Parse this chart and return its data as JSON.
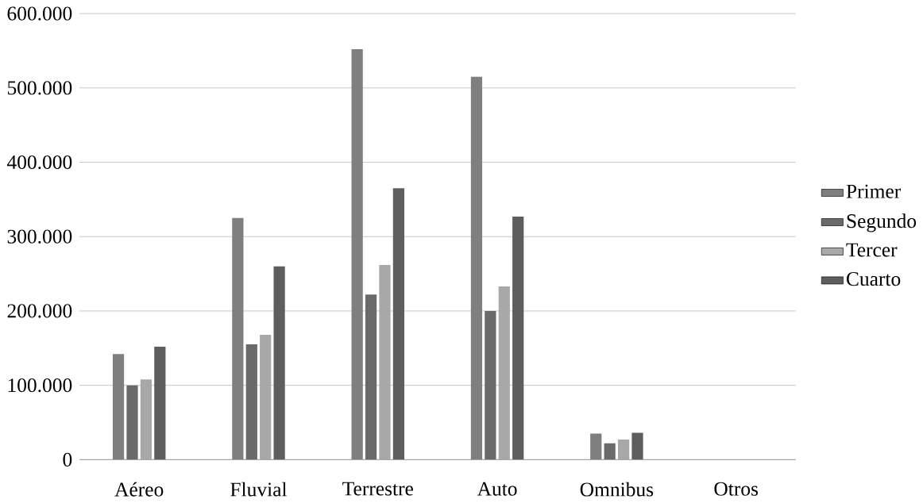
{
  "chart_data": {
    "type": "bar",
    "categories": [
      "Aéreo",
      "Fluvial",
      "Terrestre",
      "Auto",
      "Omnibus",
      "Otros"
    ],
    "series": [
      {
        "name": "Primer",
        "color": "#7f7f7f",
        "values": [
          142000,
          325000,
          552000,
          515000,
          35000,
          0
        ]
      },
      {
        "name": "Segundo",
        "color": "#6a6a6a",
        "values": [
          100000,
          155000,
          222000,
          200000,
          22000,
          0
        ]
      },
      {
        "name": "Tercer",
        "color": "#a8a8a8",
        "values": [
          108000,
          168000,
          262000,
          233000,
          27000,
          0
        ]
      },
      {
        "name": "Cuarto",
        "color": "#5e5e5e",
        "values": [
          152000,
          260000,
          365000,
          327000,
          36000,
          0
        ]
      }
    ],
    "ylim": [
      0,
      600000
    ],
    "yticks": [
      {
        "value": 0,
        "label": "0"
      },
      {
        "value": 100000,
        "label": "100.000"
      },
      {
        "value": 200000,
        "label": "200.000"
      },
      {
        "value": 300000,
        "label": "300.000"
      },
      {
        "value": 400000,
        "label": "400.000"
      },
      {
        "value": 500000,
        "label": "500.000"
      },
      {
        "value": 600000,
        "label": "600.000"
      }
    ],
    "grid": "y",
    "legend": "right"
  }
}
